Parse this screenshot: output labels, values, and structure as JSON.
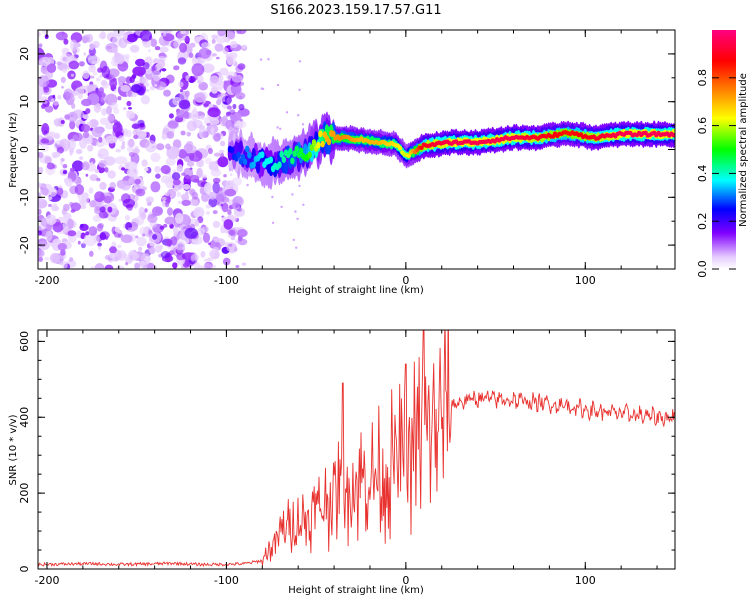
{
  "title": "S166.2023.159.17.57.G11",
  "colors": {
    "snr_line": "#e8322f",
    "frame": "#000000"
  },
  "colorbar": {
    "label": "Normalized spectral amplitude",
    "range": [
      0,
      1
    ],
    "ticks": [
      0.0,
      0.2,
      0.4,
      0.6,
      0.8
    ],
    "tick_labels": [
      "0.0",
      "0.2",
      "0.4",
      "0.6",
      "0.8"
    ]
  },
  "chart_data": [
    {
      "type": "heatmap",
      "xlabel": "Height of straight line (km)",
      "ylabel": "Frequency (Hz)",
      "xlim": [
        -205,
        150
      ],
      "ylim": [
        -25,
        25
      ],
      "x_ticks": [
        -200,
        -100,
        0,
        100
      ],
      "x_tick_labels": [
        "-200",
        "-100",
        "0",
        "100"
      ],
      "y_ticks": [
        -20,
        -10,
        0,
        10,
        20
      ],
      "y_tick_labels": [
        "-20",
        "-10",
        "0",
        "10",
        "20"
      ],
      "noise_region_x": [
        -205,
        -90
      ],
      "ridge": [
        {
          "x": -98,
          "y": -1.0,
          "amp": 0.25
        },
        {
          "x": -90,
          "y": -1.0,
          "amp": 0.3
        },
        {
          "x": -82,
          "y": -2.5,
          "amp": 0.35
        },
        {
          "x": -72,
          "y": -3.0,
          "amp": 0.4
        },
        {
          "x": -62,
          "y": -1.5,
          "amp": 0.45
        },
        {
          "x": -55,
          "y": -0.5,
          "amp": 0.5
        },
        {
          "x": -45,
          "y": 2.5,
          "amp": 0.7
        },
        {
          "x": -35,
          "y": 2.5,
          "amp": 0.75
        },
        {
          "x": -25,
          "y": 2.0,
          "amp": 0.7
        },
        {
          "x": -15,
          "y": 1.5,
          "amp": 0.7
        },
        {
          "x": -5,
          "y": 1.0,
          "amp": 0.65
        },
        {
          "x": 0,
          "y": -1.5,
          "amp": 0.6
        },
        {
          "x": 10,
          "y": 0.8,
          "amp": 0.9
        },
        {
          "x": 25,
          "y": 1.5,
          "amp": 0.95
        },
        {
          "x": 40,
          "y": 1.5,
          "amp": 0.95
        },
        {
          "x": 60,
          "y": 2.5,
          "amp": 0.95
        },
        {
          "x": 75,
          "y": 2.5,
          "amp": 0.9
        },
        {
          "x": 90,
          "y": 3.5,
          "amp": 0.85
        },
        {
          "x": 105,
          "y": 2.5,
          "amp": 0.9
        },
        {
          "x": 120,
          "y": 3.2,
          "amp": 0.95
        },
        {
          "x": 150,
          "y": 3.2,
          "amp": 0.95
        }
      ]
    },
    {
      "type": "line",
      "xlabel": "Height of straight line (km)",
      "ylabel": "SNR (10 * v/v)",
      "xlim": [
        -205,
        150
      ],
      "ylim": [
        0,
        630
      ],
      "x_ticks": [
        -200,
        -100,
        0,
        100
      ],
      "x_tick_labels": [
        "-200",
        "-100",
        "0",
        "100"
      ],
      "y_ticks": [
        0,
        200,
        400,
        600
      ],
      "y_tick_labels": [
        "0",
        "200",
        "400",
        "600"
      ],
      "series": [
        {
          "x": [
            -205,
            -190,
            -175,
            -160,
            -145,
            -130,
            -115,
            -100,
            -90,
            -80,
            -75,
            -70,
            -65,
            -60,
            -55,
            -50,
            -45,
            -40,
            -35,
            -30,
            -25,
            -20,
            -15,
            -10,
            -5,
            0,
            5,
            10,
            15,
            20,
            25,
            30,
            35,
            40,
            50,
            60,
            70,
            80,
            90,
            100,
            110,
            120,
            130,
            140,
            150
          ],
          "y": [
            12,
            13,
            14,
            12,
            13,
            15,
            12,
            12,
            14,
            22,
            60,
            95,
            110,
            120,
            140,
            150,
            170,
            190,
            210,
            215,
            230,
            235,
            250,
            270,
            280,
            300,
            330,
            360,
            380,
            410,
            430,
            440,
            445,
            450,
            448,
            445,
            440,
            435,
            430,
            420,
            415,
            410,
            405,
            400,
            398
          ]
        }
      ],
      "spikes": [
        {
          "x": -35,
          "y": 490
        },
        {
          "x": 0,
          "y": 540
        },
        {
          "x": 10,
          "y": 630
        }
      ]
    }
  ]
}
